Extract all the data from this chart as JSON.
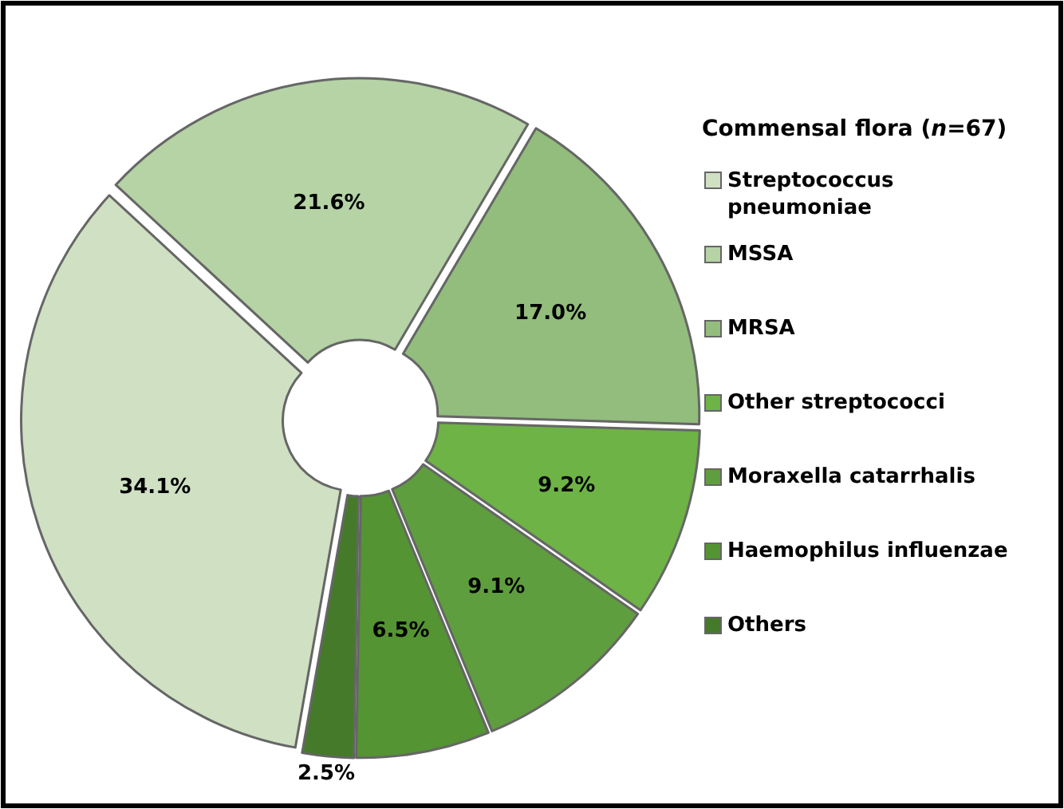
{
  "chart_data": {
    "type": "donut",
    "legend_title": "Commensal flora (n=67)",
    "legend": "right",
    "value_labels": [
      "34.1%",
      "21.6%",
      "17.0%",
      "9.2%",
      "9.1%",
      "6.5%",
      "2.5%"
    ],
    "categories": [
      "Streptococcus pneumoniae",
      "MSSA",
      "MRSA",
      "Other streptococci",
      "Moraxella catarrhalis",
      "Haemophilus influenzae",
      "Others"
    ],
    "values": [
      34.1,
      21.6,
      17.0,
      9.2,
      9.1,
      6.5,
      2.5
    ],
    "colors": [
      "#cfe0c3",
      "#b5d3a5",
      "#92bd7c",
      "#6db345",
      "#5f9e3e",
      "#549432",
      "#457a2b"
    ]
  }
}
